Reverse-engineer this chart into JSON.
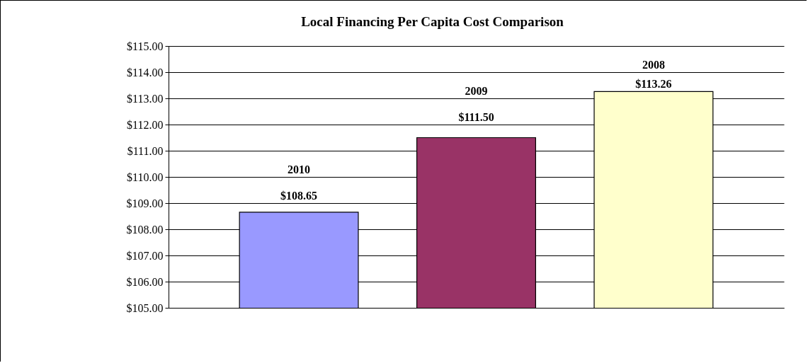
{
  "chart_data": {
    "type": "bar",
    "title": "Local Financing Per Capita Cost Comparison",
    "categories": [
      "2010",
      "2009",
      "2008"
    ],
    "values": [
      108.65,
      111.5,
      113.26
    ],
    "colors": [
      "#9999ff",
      "#993366",
      "#ffffcc"
    ],
    "value_labels": [
      "$108.65",
      "$111.50",
      "$113.26"
    ],
    "ylim": [
      105,
      115
    ],
    "yticks": [
      {
        "value": 105,
        "label": "$105.00"
      },
      {
        "value": 106,
        "label": "$106.00"
      },
      {
        "value": 107,
        "label": "$107.00"
      },
      {
        "value": 108,
        "label": "$108.00"
      },
      {
        "value": 109,
        "label": "$109.00"
      },
      {
        "value": 110,
        "label": "$110.00"
      },
      {
        "value": 111,
        "label": "$111.00"
      },
      {
        "value": 112,
        "label": "$112.00"
      },
      {
        "value": 113,
        "label": "$113.00"
      },
      {
        "value": 114,
        "label": "$114.00"
      },
      {
        "value": 115,
        "label": "$115.00"
      }
    ],
    "grid": "y",
    "tick_labels": "y",
    "legend": false
  }
}
